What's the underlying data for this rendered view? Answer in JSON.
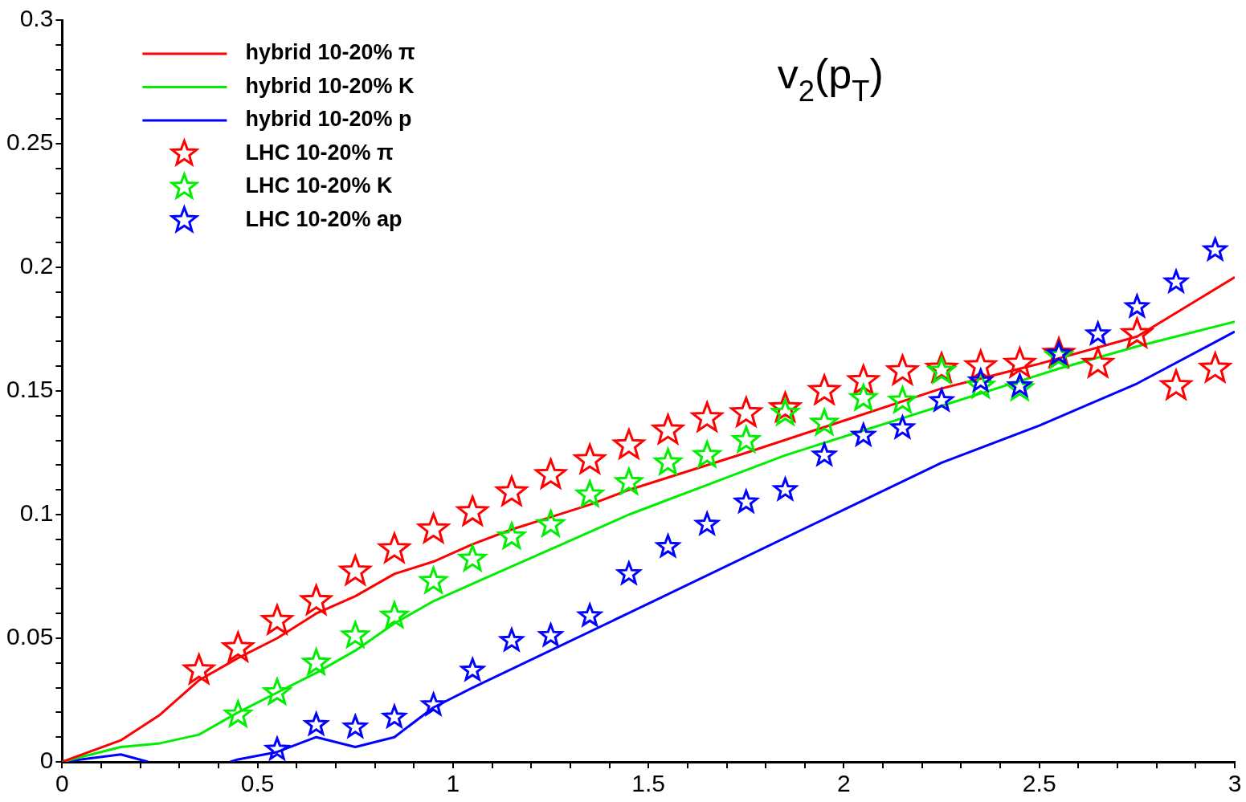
{
  "chart_data": {
    "type": "line",
    "title": "v$_{2}$(p$_{T}$)",
    "legend": "top left",
    "grid": false,
    "xlim": [
      0,
      3
    ],
    "ylim": [
      0,
      0.3
    ],
    "xticks": [
      0,
      {
        "value": 0.1,
        "label": null
      },
      {
        "value": 0.2,
        "label": null
      },
      {
        "value": 0.3,
        "label": null
      },
      {
        "value": 0.4,
        "label": null
      },
      0.5,
      {
        "value": 0.6,
        "label": null
      },
      {
        "value": 0.7,
        "label": null
      },
      {
        "value": 0.8,
        "label": null
      },
      {
        "value": 0.9,
        "label": null
      },
      1,
      {
        "value": 1.1,
        "label": null
      },
      {
        "value": 1.2,
        "label": null
      },
      {
        "value": 1.3,
        "label": null
      },
      {
        "value": 1.4,
        "label": null
      },
      1.5,
      {
        "value": 1.6,
        "label": null
      },
      {
        "value": 1.7,
        "label": null
      },
      {
        "value": 1.8,
        "label": null
      },
      {
        "value": 1.9,
        "label": null
      },
      2,
      {
        "value": 2.1,
        "label": null
      },
      {
        "value": 2.2,
        "label": null
      },
      {
        "value": 2.3,
        "label": null
      },
      {
        "value": 2.4,
        "label": null
      },
      2.5,
      {
        "value": 2.6,
        "label": null
      },
      {
        "value": 2.7,
        "label": null
      },
      {
        "value": 2.8,
        "label": null
      },
      {
        "value": 2.9,
        "label": null
      },
      3
    ],
    "yticks": [
      0,
      {
        "value": 0.01,
        "label": null
      },
      {
        "value": 0.02,
        "label": null
      },
      {
        "value": 0.03,
        "label": null
      },
      {
        "value": 0.04,
        "label": null
      },
      0.05,
      {
        "value": 0.06,
        "label": null
      },
      {
        "value": 0.07,
        "label": null
      },
      {
        "value": 0.08,
        "label": null
      },
      {
        "value": 0.09,
        "label": null
      },
      0.1,
      {
        "value": 0.11,
        "label": null
      },
      {
        "value": 0.12,
        "label": null
      },
      {
        "value": 0.13,
        "label": null
      },
      {
        "value": 0.14,
        "label": null
      },
      0.15,
      {
        "value": 0.16,
        "label": null
      },
      {
        "value": 0.17,
        "label": null
      },
      {
        "value": 0.18,
        "label": null
      },
      {
        "value": 0.19,
        "label": null
      },
      0.2,
      {
        "value": 0.21,
        "label": null
      },
      {
        "value": 0.22,
        "label": null
      },
      {
        "value": 0.23,
        "label": null
      },
      {
        "value": 0.24,
        "label": null
      },
      0.25,
      {
        "value": 0.26,
        "label": null
      },
      {
        "value": 0.27,
        "label": null
      },
      {
        "value": 0.28,
        "label": null
      },
      {
        "value": 0.29,
        "label": null
      },
      0.3
    ],
    "series": [
      {
        "name": "hybrid 10-20% π",
        "type": "line",
        "marker": "none",
        "color": "#ff0000",
        "x": [
          0,
          0.15,
          0.25,
          0.35,
          0.45,
          0.55,
          0.65,
          0.75,
          0.85,
          0.95,
          1.05,
          1.15,
          1.25,
          1.35,
          1.45,
          1.75,
          2.0,
          2.25,
          2.5,
          2.75,
          3.0
        ],
        "values": [
          0,
          0.0087,
          0.019,
          0.033,
          0.042,
          0.05,
          0.06,
          0.067,
          0.076,
          0.081,
          0.088,
          0.094,
          0.099,
          0.104,
          0.11,
          0.125,
          0.138,
          0.151,
          0.161,
          0.172,
          0.196
        ]
      },
      {
        "name": "hybrid 10-20% K",
        "type": "line",
        "marker": "none",
        "color": "#00ee00",
        "x": [
          0,
          0.15,
          0.25,
          0.35,
          0.45,
          0.55,
          0.65,
          0.75,
          0.85,
          0.95,
          1.05,
          1.15,
          1.25,
          1.35,
          1.45,
          1.55,
          1.65,
          1.75,
          1.85,
          1.95,
          2.05,
          2.15,
          2.25,
          2.35,
          2.45,
          2.55,
          2.75,
          3.0
        ],
        "values": [
          0,
          0.006,
          0.0075,
          0.011,
          0.02,
          0.028,
          0.036,
          0.045,
          0.056,
          0.065,
          0.072,
          0.079,
          0.086,
          0.093,
          0.1,
          0.106,
          0.112,
          0.118,
          0.124,
          0.129,
          0.134,
          0.139,
          0.144,
          0.149,
          0.154,
          0.159,
          0.168,
          0.178
        ]
      },
      {
        "name": "hybrid 10-20% p",
        "type": "line",
        "marker": "none",
        "color": "#0000ff",
        "x": [
          0,
          0.15,
          0.22,
          0.3,
          0.43,
          0.45,
          0.55,
          0.65,
          0.75,
          0.85,
          0.95,
          1.05,
          1.5,
          2.0,
          2.25,
          2.5,
          2.75,
          3.0
        ],
        "values": [
          0,
          0.003,
          0,
          null,
          0,
          0.001,
          0.004,
          0.01,
          0.006,
          0.01,
          0.022,
          0.03,
          0.064,
          0.102,
          0.121,
          0.136,
          0.153,
          0.174
        ]
      },
      {
        "name": "LHC 10-20% π",
        "type": "scatter",
        "marker": "star",
        "color": "#ff0000",
        "x": [
          0.35,
          0.45,
          0.55,
          0.65,
          0.75,
          0.85,
          0.95,
          1.05,
          1.15,
          1.25,
          1.35,
          1.45,
          1.55,
          1.65,
          1.75,
          1.85,
          1.95,
          2.05,
          2.15,
          2.25,
          2.35,
          2.45,
          2.55,
          2.65,
          2.75,
          2.85,
          2.95
        ],
        "values": [
          0.037,
          0.046,
          0.057,
          0.065,
          0.077,
          0.086,
          0.094,
          0.101,
          0.109,
          0.116,
          0.122,
          0.128,
          0.134,
          0.139,
          0.141,
          0.143,
          0.15,
          0.154,
          0.158,
          0.159,
          0.16,
          0.161,
          0.165,
          0.161,
          0.173,
          0.152,
          0.159
        ]
      },
      {
        "name": "LHC 10-20% K",
        "type": "scatter",
        "marker": "star",
        "color": "#00ee00",
        "x": [
          0.45,
          0.55,
          0.65,
          0.75,
          0.85,
          0.95,
          1.05,
          1.15,
          1.25,
          1.35,
          1.45,
          1.55,
          1.65,
          1.75,
          1.85,
          1.95,
          2.05,
          2.15,
          2.25,
          2.35,
          2.45,
          2.55
        ],
        "values": [
          0.019,
          0.028,
          0.04,
          0.051,
          0.059,
          0.073,
          0.082,
          0.091,
          0.096,
          0.108,
          0.113,
          0.121,
          0.124,
          0.13,
          0.141,
          0.137,
          0.147,
          0.146,
          0.158,
          0.152,
          0.151,
          0.164
        ]
      },
      {
        "name": "LHC 10-20% ap",
        "type": "scatter",
        "marker": "star",
        "color": "#0000ff",
        "x": [
          0.55,
          0.65,
          0.75,
          0.85,
          0.95,
          1.05,
          1.15,
          1.25,
          1.35,
          1.45,
          1.55,
          1.65,
          1.75,
          1.85,
          1.95,
          2.05,
          2.15,
          2.25,
          2.35,
          2.45,
          2.55,
          2.65,
          2.75,
          2.85,
          2.95
        ],
        "values": [
          0.005,
          0.015,
          0.014,
          0.018,
          0.023,
          0.037,
          0.049,
          0.051,
          0.059,
          0.076,
          0.087,
          0.096,
          0.105,
          0.11,
          0.124,
          0.132,
          0.135,
          0.146,
          0.154,
          0.152,
          0.165,
          0.173,
          0.184,
          0.194,
          0.207
        ]
      }
    ]
  }
}
